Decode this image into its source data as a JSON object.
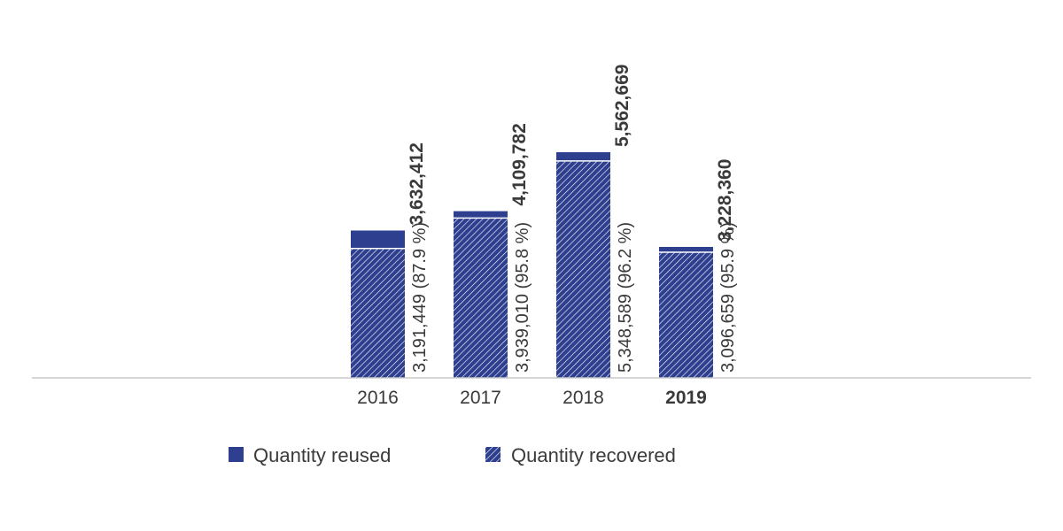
{
  "chart_data": {
    "type": "bar",
    "stacked": true,
    "categories": [
      "2016",
      "2017",
      "2018",
      "2019"
    ],
    "highlight_category": "2019",
    "series": [
      {
        "name": "Quantity recovered",
        "values": [
          3191449,
          3939010,
          5348589,
          3096659
        ],
        "labels": [
          "3,191,449 (87.9 %)",
          "3,939,010 (95.8 %)",
          "5,348,589 (96.2 %)",
          "3,096,659 (95.9 %)"
        ],
        "color": "#2e3f8f",
        "pattern": "diagonal-hatch"
      },
      {
        "name": "Quantity reused",
        "values": [
          440963,
          170772,
          214080,
          131701
        ],
        "color": "#2e3f8f",
        "pattern": "solid"
      }
    ],
    "totals": [
      3632412,
      4109782,
      5562669,
      3228360
    ],
    "total_labels": [
      "3,632,412",
      "4,109,782",
      "5,562,669",
      "3,228,360"
    ],
    "title": "",
    "xlabel": "",
    "ylabel": "",
    "ylim": [
      0,
      6200000
    ],
    "grid": false,
    "legend_position": "bottom"
  },
  "colors": {
    "bar": "#2e3f8f",
    "axis": "#c8c8c8",
    "text": "#3a3a3a"
  }
}
